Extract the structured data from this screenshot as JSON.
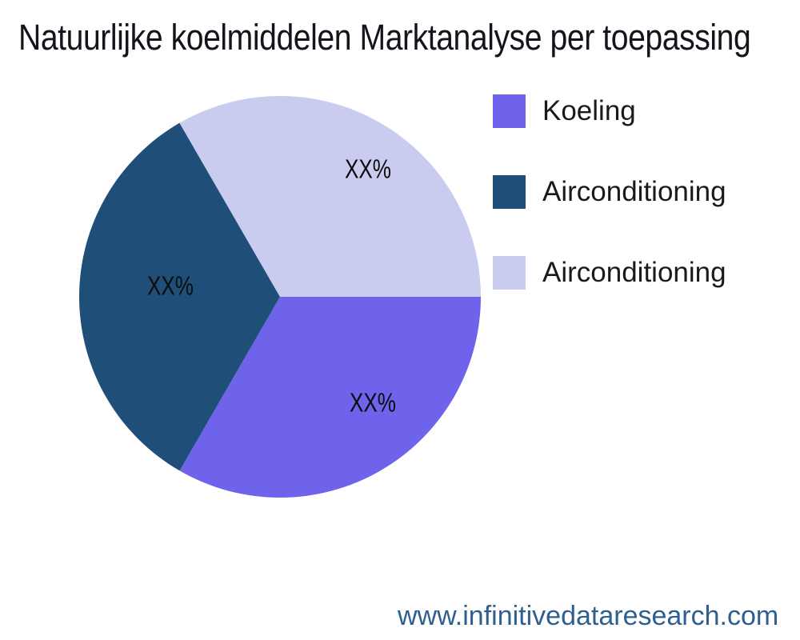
{
  "page": {
    "background": "#ffffff"
  },
  "title": "Natuurlijke koelmiddelen Marktanalyse per toepassing",
  "footer": {
    "url": "www.infinitivedataresearch.com",
    "color": "#2e5f8f"
  },
  "chart_data": {
    "type": "pie",
    "title": "Natuurlijke koelmiddelen Marktanalyse per toepassing",
    "start_angle_deg": 0,
    "direction": "clockwise",
    "legend_position": "right",
    "slices": [
      {
        "label": "Koeling",
        "value": 33.33,
        "display_value": "XX%",
        "color": "#6f63eb"
      },
      {
        "label": "Airconditioning",
        "value": 33.33,
        "display_value": "XX%",
        "color": "#1f4e79"
      },
      {
        "label": "Airconditioning",
        "value": 33.34,
        "display_value": "XX%",
        "color": "#caccef"
      }
    ]
  }
}
